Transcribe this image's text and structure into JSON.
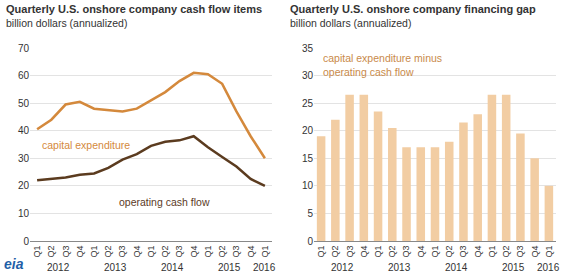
{
  "chart_data": [
    {
      "type": "line",
      "title": "Quarterly U.S. onshore company cash flow items",
      "subtitle": "billion dollars (annualized)",
      "categories": [
        "Q1",
        "Q2",
        "Q3",
        "Q4",
        "Q1",
        "Q2",
        "Q3",
        "Q4",
        "Q1",
        "Q2",
        "Q3",
        "Q4",
        "Q1",
        "Q2",
        "Q3",
        "Q4",
        "Q1"
      ],
      "years": [
        "2012",
        "2012",
        "2012",
        "2012",
        "2013",
        "2013",
        "2013",
        "2013",
        "2014",
        "2014",
        "2014",
        "2014",
        "2015",
        "2015",
        "2015",
        "2015",
        "2016"
      ],
      "ylim": [
        0,
        70
      ],
      "yticks": [
        0,
        10,
        20,
        30,
        40,
        50,
        60,
        70
      ],
      "grid": true,
      "series": [
        {
          "name": "capital expenditure",
          "color": "#d4893c",
          "values": [
            40.5,
            44,
            49.5,
            50.5,
            48,
            47.5,
            47,
            48,
            51,
            54,
            58,
            61,
            60.5,
            57,
            47,
            38,
            30
          ]
        },
        {
          "name": "operating cash flow",
          "color": "#5b3b1f",
          "values": [
            22,
            22.5,
            23,
            24,
            24.5,
            26.5,
            29.5,
            31.5,
            34.5,
            36,
            36.5,
            38,
            34,
            30.5,
            27,
            22.5,
            20
          ]
        }
      ]
    },
    {
      "type": "bar",
      "title": "Quarterly U.S. onshore company financing gap",
      "subtitle": "billion dollars (annualized)",
      "categories": [
        "Q1",
        "Q2",
        "Q3",
        "Q4",
        "Q1",
        "Q2",
        "Q3",
        "Q4",
        "Q1",
        "Q2",
        "Q3",
        "Q4",
        "Q1",
        "Q2",
        "Q3",
        "Q4",
        "Q1"
      ],
      "years": [
        "2012",
        "2012",
        "2012",
        "2012",
        "2013",
        "2013",
        "2013",
        "2013",
        "2014",
        "2014",
        "2014",
        "2014",
        "2015",
        "2015",
        "2015",
        "2015",
        "2016"
      ],
      "ylim": [
        0,
        35
      ],
      "yticks": [
        0,
        5,
        10,
        15,
        20,
        25,
        30,
        35
      ],
      "grid": true,
      "series": [
        {
          "name": "capital expenditure minus\noperating cash flow",
          "color": "#f2cda3",
          "values": [
            19,
            22,
            26.5,
            26.5,
            23.5,
            20.5,
            17,
            17,
            17,
            18,
            21.5,
            23,
            26.5,
            26.5,
            19.5,
            15,
            10
          ]
        }
      ]
    }
  ],
  "logo": "eia"
}
